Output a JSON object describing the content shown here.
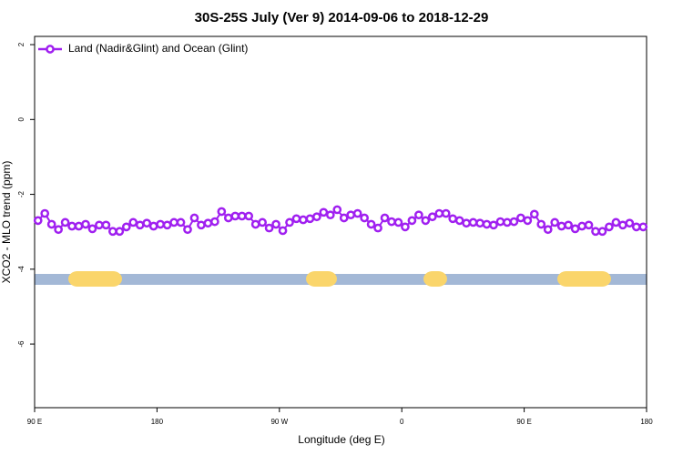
{
  "chart_data": {
    "type": "line",
    "title": "30S-25S July (Ver 9)   2014-09-06 to 2018-12-29",
    "x_label": "Longitude (deg E)",
    "y_label": "XCO2 - MLO trend (ppm)",
    "xlim": [
      90,
      540
    ],
    "ylim": [
      -7.7,
      2.22
    ],
    "xticks": [
      {
        "value": 90,
        "label": "90 E"
      },
      180,
      {
        "value": 270,
        "label": "90 W"
      },
      {
        "value": 360,
        "label": "0"
      },
      {
        "value": 450,
        "label": "90 E"
      },
      {
        "value": 540,
        "label": "180"
      }
    ],
    "yticks": [
      2,
      0,
      -2,
      -4,
      -6
    ],
    "legend": "top-left",
    "x": [
      92.5,
      97.5,
      102.5,
      107.5,
      112.5,
      117.5,
      122.5,
      127.5,
      132.5,
      137.5,
      142.5,
      147.5,
      152.5,
      157.5,
      162.5,
      167.5,
      172.5,
      177.5,
      182.5,
      187.5,
      192.5,
      197.5,
      202.5,
      207.5,
      212.5,
      217.5,
      222.5,
      227.5,
      232.5,
      237.5,
      242.5,
      247.5,
      252.5,
      257.5,
      262.5,
      267.5,
      272.5,
      277.5,
      282.5,
      287.5,
      292.5,
      297.5,
      302.5,
      307.5,
      312.5,
      317.5,
      322.5,
      327.5,
      332.5,
      337.5,
      342.5,
      347.5,
      352.5,
      357.5,
      362.5,
      367.5,
      372.5,
      377.5,
      382.5,
      387.5,
      392.5,
      397.5,
      402.5,
      407.5,
      412.5,
      417.5,
      422.5,
      427.5,
      432.5,
      437.5,
      442.5,
      447.5,
      452.5,
      457.5,
      462.5,
      467.5,
      472.5,
      477.5,
      482.5,
      487.5,
      492.5,
      497.5,
      502.5,
      507.5,
      512.5,
      517.5,
      522.5,
      527.5,
      532.5,
      537.5
    ],
    "series": [
      {
        "name": "Land (Nadir&Glint) and Ocean (Glint)",
        "color": "#a020f0",
        "values": [
          -2.7,
          -2.51,
          -2.8,
          -2.94,
          -2.75,
          -2.85,
          -2.85,
          -2.8,
          -2.92,
          -2.82,
          -2.82,
          -2.99,
          -2.99,
          -2.87,
          -2.75,
          -2.82,
          -2.77,
          -2.85,
          -2.8,
          -2.82,
          -2.75,
          -2.75,
          -2.94,
          -2.63,
          -2.82,
          -2.77,
          -2.73,
          -2.46,
          -2.63,
          -2.58,
          -2.58,
          -2.58,
          -2.8,
          -2.75,
          -2.9,
          -2.8,
          -2.97,
          -2.75,
          -2.65,
          -2.68,
          -2.65,
          -2.6,
          -2.48,
          -2.55,
          -2.41,
          -2.63,
          -2.55,
          -2.51,
          -2.63,
          -2.8,
          -2.9,
          -2.63,
          -2.73,
          -2.75,
          -2.87,
          -2.7,
          -2.55,
          -2.7,
          -2.6,
          -2.51,
          -2.51,
          -2.65,
          -2.7,
          -2.77,
          -2.75,
          -2.77,
          -2.8,
          -2.82,
          -2.73,
          -2.75,
          -2.73,
          -2.63,
          -2.7,
          -2.53,
          -2.8,
          -2.94,
          -2.75,
          -2.85,
          -2.82,
          -2.92,
          -2.85,
          -2.82,
          -2.99,
          -2.99,
          -2.87,
          -2.75,
          -2.82,
          -2.77,
          -2.87,
          -2.87
        ]
      }
    ]
  }
}
